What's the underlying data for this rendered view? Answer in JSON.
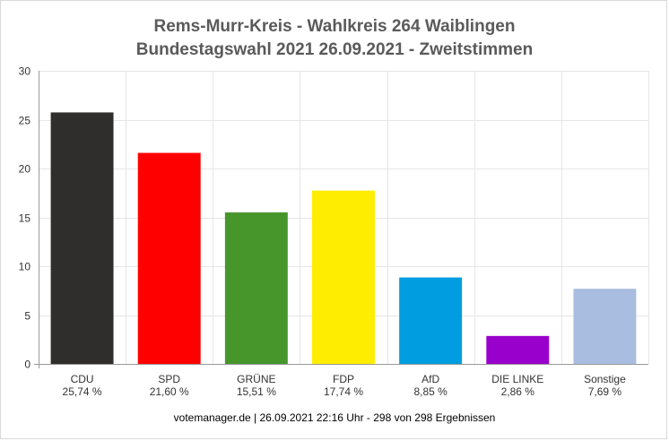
{
  "title_line1": "Rems-Murr-Kreis - Wahlkreis 264 Waiblingen",
  "title_line2": "Bundestagswahl 2021 26.09.2021  - Zweitstimmen",
  "footer": "votemanager.de | 26.09.2021 22:16 Uhr - 298 von 298 Ergebnissen",
  "chart_data": {
    "type": "bar",
    "title": "Rems-Murr-Kreis - Wahlkreis 264 Waiblingen\nBundestagswahl 2021 26.09.2021  - Zweitstimmen",
    "xlabel": "",
    "ylabel": "",
    "ylim": [
      0,
      30
    ],
    "yticks": [
      0,
      5,
      10,
      15,
      20,
      25,
      30
    ],
    "grid": true,
    "legend": "none",
    "categories": [
      "CDU",
      "SPD",
      "GRÜNE",
      "FDP",
      "AfD",
      "DIE LINKE",
      "Sonstige"
    ],
    "category_sublabels": [
      "25,74 %",
      "21,60 %",
      "15,51 %",
      "17,74 %",
      "8,85 %",
      "2,86 %",
      "7,69 %"
    ],
    "values": [
      25.74,
      21.6,
      15.51,
      17.74,
      8.85,
      2.86,
      7.69
    ],
    "colors": [
      "#2f2e2c",
      "#ff0000",
      "#46962b",
      "#ffed00",
      "#009ee0",
      "#9900cc",
      "#a9bde0"
    ]
  }
}
